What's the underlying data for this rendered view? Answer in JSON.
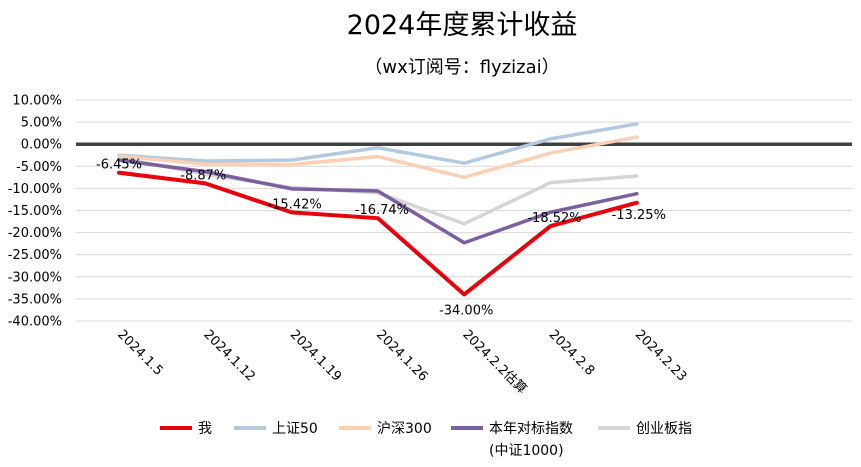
{
  "chart_data": {
    "type": "line",
    "title": "2024年度累计收益",
    "subtitle": "（wx订阅号：flyzizai）",
    "categories": [
      "2024.1.5",
      "2024.1.12",
      "2024.1.19",
      "2024.1.26",
      "2024.2.2估算",
      "2024.2.8",
      "2024.2.23"
    ],
    "y_ticks": [
      "10.00%",
      "5.00%",
      "0.00%",
      "-5.00%",
      "-10.00%",
      "-15.00%",
      "-20.00%",
      "-25.00%",
      "-30.00%",
      "-35.00%",
      "-40.00%"
    ],
    "ylim": [
      -40,
      10
    ],
    "ytick_step": 5,
    "series": [
      {
        "name": "我",
        "color": "#e8000b",
        "values": [
          -6.45,
          -8.87,
          -15.42,
          -16.74,
          -34.0,
          -18.52,
          -13.25
        ],
        "labels": [
          "-6.45%",
          "-8.87%",
          "-15.42%",
          "-16.74%",
          "-34.00%",
          "-18.52%",
          "-13.25%"
        ]
      },
      {
        "name": "上证50",
        "color": "#b3c9e0",
        "values": [
          -2.5,
          -3.8,
          -3.6,
          -0.8,
          -4.3,
          1.2,
          4.6
        ]
      },
      {
        "name": "沪深300",
        "color": "#fbd0b5",
        "values": [
          -2.7,
          -4.5,
          -4.6,
          -2.8,
          -7.5,
          -2.0,
          1.6
        ]
      },
      {
        "name": "本年对标指数",
        "name_line2": "(中证1000)",
        "color": "#7b5fa0",
        "values": [
          -3.6,
          -6.2,
          -10.1,
          -10.6,
          -22.3,
          -15.4,
          -11.2
        ]
      },
      {
        "name": "创业板指",
        "color": "#d5d5d5",
        "values": [
          -3.1,
          -6.8,
          -9.8,
          -11.0,
          -18.0,
          -8.7,
          -7.2
        ]
      }
    ]
  }
}
